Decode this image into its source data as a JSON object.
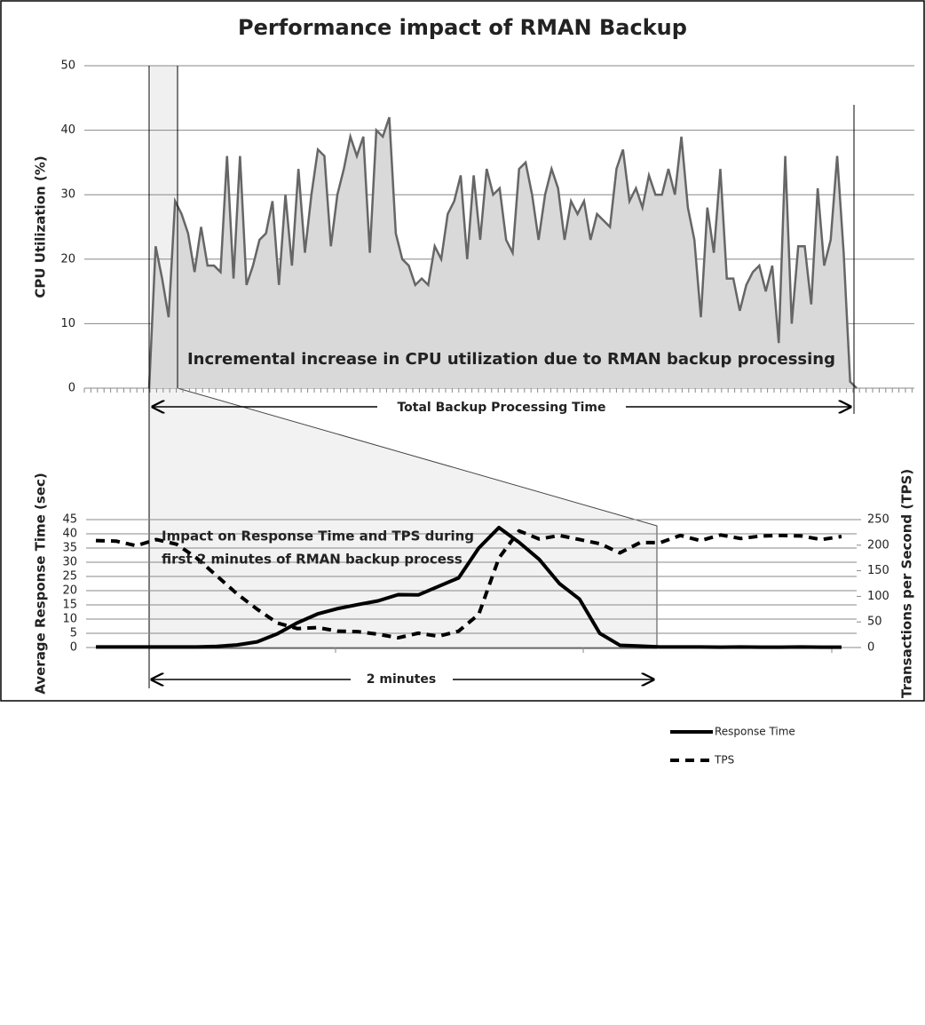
{
  "title": "Performance impact of RMAN Backup",
  "chart_data": [
    {
      "type": "area",
      "ylabel": "CPU Utilization (%)",
      "ylim": [
        0,
        50
      ],
      "yticks": [
        0,
        10,
        20,
        30,
        40,
        50
      ],
      "grid": true,
      "color": "#d9d9d9",
      "line_color": "#666666",
      "values": [
        0,
        22,
        17,
        11,
        29,
        27,
        24,
        18,
        25,
        19,
        19,
        18,
        36,
        17,
        36,
        16,
        19,
        23,
        24,
        29,
        16,
        30,
        19,
        34,
        21,
        30,
        37,
        36,
        22,
        30,
        34,
        39,
        36,
        39,
        21,
        40,
        39,
        42,
        24,
        20,
        19,
        16,
        17,
        16,
        22,
        20,
        27,
        29,
        33,
        20,
        33,
        23,
        34,
        30,
        31,
        23,
        21,
        34,
        35,
        30,
        23,
        30,
        34,
        31,
        23,
        29,
        27,
        29,
        23,
        27,
        26,
        25,
        34,
        37,
        29,
        31,
        28,
        33,
        30,
        30,
        34,
        30,
        39,
        28,
        23,
        11,
        28,
        21,
        34,
        17,
        17,
        12,
        16,
        18,
        19,
        15,
        19,
        7,
        36,
        10,
        22,
        22,
        13,
        31,
        19,
        23,
        36,
        21,
        1,
        0
      ],
      "annotation": "Incremental increase in CPU utilization due to RMAN backup processing",
      "span_label": "Total Backup Processing Time"
    },
    {
      "type": "line",
      "ylabel": "Average Response Time (sec)",
      "y2label": "Transactions per Second (TPS)",
      "ylim": [
        0,
        45
      ],
      "yticks": [
        0,
        5,
        10,
        15,
        20,
        25,
        30,
        35,
        40,
        45
      ],
      "y2lim": [
        0,
        250
      ],
      "y2ticks": [
        0,
        50,
        100,
        150,
        200,
        250
      ],
      "grid": true,
      "series": [
        {
          "name": "Response Time",
          "color": "#000000",
          "dash": false,
          "values": [
            0.2,
            0.2,
            0.2,
            0.2,
            0.2,
            0.2,
            0.4,
            0.9,
            2,
            4.8,
            8.7,
            11.8,
            13.7,
            15.1,
            16.4,
            18.6,
            18.5,
            21.5,
            24.5,
            35,
            42.2,
            37,
            31,
            22.5,
            17,
            5,
            0.8,
            0.5,
            0.2,
            0.2,
            0.2,
            0.1,
            0.2,
            0.1,
            0.1,
            0.2,
            0.1,
            0.1
          ]
        },
        {
          "name": "TPS",
          "color": "#000000",
          "dash": true,
          "axis": "y2",
          "values": [
            209,
            208,
            199,
            211,
            202,
            175,
            140,
            105,
            75,
            48,
            37,
            39,
            32,
            31,
            26,
            19,
            28,
            22,
            32,
            65,
            175,
            228,
            212,
            219,
            211,
            203,
            185,
            205,
            205,
            219,
            209,
            220,
            213,
            218,
            219,
            218,
            211,
            217
          ]
        }
      ],
      "annotation": [
        "Impact on Response Time and TPS during",
        "first 2 minutes of RMAN backup process"
      ],
      "span_label": "2 minutes"
    }
  ]
}
